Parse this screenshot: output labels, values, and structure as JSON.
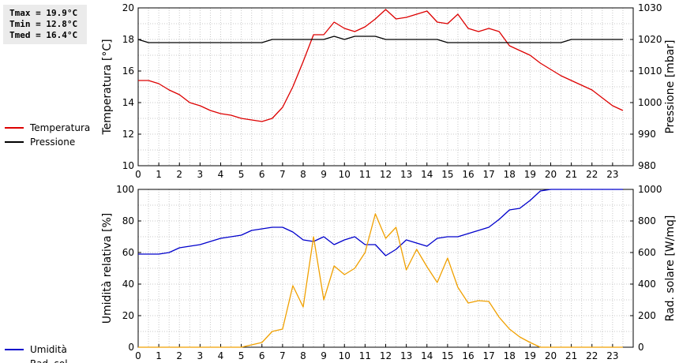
{
  "stats": {
    "tmax": "Tmax = 19.9°C",
    "tmin": "Tmin = 12.8°C",
    "tmed": "Tmed = 16.4°C"
  },
  "chart_data": [
    {
      "type": "line",
      "ylabel_left": "Temperatura [°C]",
      "ylabel_right": "Pressione [mbar]",
      "xlim": [
        0,
        24
      ],
      "ylim_left": [
        10,
        20
      ],
      "ylim_right": [
        980,
        1030
      ],
      "x_ticks": [
        "0",
        "1",
        "2",
        "3",
        "4",
        "5",
        "6",
        "7",
        "8",
        "9",
        "10",
        "11",
        "12",
        "13",
        "14",
        "15",
        "16",
        "17",
        "18",
        "19",
        "20",
        "21",
        "22",
        "23"
      ],
      "y_ticks_left": [
        "10",
        "12",
        "14",
        "16",
        "18",
        "20"
      ],
      "y_ticks_right": [
        "980",
        "990",
        "1000",
        "1010",
        "1020",
        "1030"
      ],
      "grid": true,
      "legend_position": "left",
      "series": [
        {
          "name": "Temperatura",
          "axis": "left",
          "color": "#dd0000",
          "x": [
            0,
            0.5,
            1,
            1.5,
            2,
            2.5,
            3,
            3.5,
            4,
            4.5,
            5,
            5.5,
            6,
            6.5,
            7,
            7.5,
            8,
            8.5,
            9,
            9.5,
            10,
            10.5,
            11,
            11.5,
            12,
            12.5,
            13,
            13.5,
            14,
            14.5,
            15,
            15.5,
            16,
            16.5,
            17,
            17.5,
            18,
            18.5,
            19,
            19.5,
            20,
            20.5,
            21,
            21.5,
            22,
            22.5,
            23,
            23.5
          ],
          "values": [
            15.4,
            15.4,
            15.2,
            14.8,
            14.5,
            14.0,
            13.8,
            13.5,
            13.3,
            13.2,
            13.0,
            12.9,
            12.8,
            13.0,
            13.7,
            15.0,
            16.6,
            18.3,
            18.3,
            19.1,
            18.7,
            18.5,
            18.8,
            19.3,
            19.9,
            19.3,
            19.4,
            19.6,
            19.8,
            19.1,
            19.0,
            19.6,
            18.7,
            18.5,
            18.7,
            18.5,
            17.6,
            17.3,
            17.0,
            16.5,
            16.1,
            15.7,
            15.4,
            15.1,
            14.8,
            14.3,
            13.8,
            13.5
          ]
        },
        {
          "name": "Pressione",
          "axis": "right",
          "color": "#000000",
          "x": [
            0,
            0.5,
            1,
            1.5,
            2,
            2.5,
            3,
            3.5,
            4,
            4.5,
            5,
            5.5,
            6,
            6.5,
            7,
            7.5,
            8,
            8.5,
            9,
            9.5,
            10,
            10.5,
            11,
            11.5,
            12,
            12.5,
            13,
            13.5,
            14,
            14.5,
            15,
            15.5,
            16,
            16.5,
            17,
            17.5,
            18,
            18.5,
            19,
            19.5,
            20,
            20.5,
            21,
            21.5,
            22,
            22.5,
            23,
            23.5
          ],
          "values": [
            1020,
            1019,
            1019,
            1019,
            1019,
            1019,
            1019,
            1019,
            1019,
            1019,
            1019,
            1019,
            1019,
            1020,
            1020,
            1020,
            1020,
            1020,
            1020,
            1021,
            1020,
            1021,
            1021,
            1021,
            1020,
            1020,
            1020,
            1020,
            1020,
            1020,
            1019,
            1019,
            1019,
            1019,
            1019,
            1019,
            1019,
            1019,
            1019,
            1019,
            1019,
            1019,
            1020,
            1020,
            1020,
            1020,
            1020,
            1020
          ]
        }
      ]
    },
    {
      "type": "line",
      "ylabel_left": "Umidità relativa [%]",
      "ylabel_right": "Rad. solare [W/mq]",
      "xlim": [
        0,
        24
      ],
      "ylim_left": [
        0,
        100
      ],
      "ylim_right": [
        0,
        1000
      ],
      "x_ticks": [
        "0",
        "1",
        "2",
        "3",
        "4",
        "5",
        "6",
        "7",
        "8",
        "9",
        "10",
        "11",
        "12",
        "13",
        "14",
        "15",
        "16",
        "17",
        "18",
        "19",
        "20",
        "21",
        "22",
        "23"
      ],
      "y_ticks_left": [
        "0",
        "20",
        "40",
        "60",
        "80",
        "100"
      ],
      "y_ticks_right": [
        "0",
        "200",
        "400",
        "600",
        "800",
        "1000"
      ],
      "grid": true,
      "legend_position": "left",
      "series": [
        {
          "name": "Umidità",
          "axis": "left",
          "color": "#0000cc",
          "x": [
            0,
            0.5,
            1,
            1.5,
            2,
            2.5,
            3,
            3.5,
            4,
            4.5,
            5,
            5.5,
            6,
            6.5,
            7,
            7.5,
            8,
            8.5,
            9,
            9.5,
            10,
            10.5,
            11,
            11.5,
            12,
            12.5,
            13,
            13.5,
            14,
            14.5,
            15,
            15.5,
            16,
            16.5,
            17,
            17.5,
            18,
            18.5,
            19,
            19.5,
            20,
            20.5,
            21,
            21.5,
            22,
            22.5,
            23,
            23.5
          ],
          "values": [
            59,
            59,
            59,
            60,
            63,
            64,
            65,
            67,
            69,
            70,
            71,
            74,
            75,
            76,
            76,
            73,
            68,
            67,
            70,
            65,
            68,
            70,
            65,
            65,
            58,
            62,
            68,
            66,
            64,
            69,
            70,
            70,
            72,
            74,
            76,
            81,
            87,
            88,
            93,
            99,
            100,
            100,
            100,
            100,
            100,
            100,
            100,
            100
          ]
        },
        {
          "name": "Rad. sol.",
          "axis": "right",
          "color": "#f0a000",
          "x": [
            0,
            0.5,
            1,
            1.5,
            2,
            2.5,
            3,
            3.5,
            4,
            4.5,
            5,
            5.5,
            6,
            6.5,
            7,
            7.5,
            8,
            8.5,
            9,
            9.5,
            10,
            10.5,
            11,
            11.5,
            12,
            12.5,
            13,
            13.5,
            14,
            14.5,
            15,
            15.5,
            16,
            16.5,
            17,
            17.5,
            18,
            18.5,
            19,
            19.5,
            20,
            20.5,
            21,
            21.5,
            22,
            22.5,
            23,
            23.5
          ],
          "values": [
            0,
            0,
            0,
            0,
            0,
            0,
            0,
            0,
            0,
            0,
            0,
            15,
            30,
            100,
            115,
            390,
            255,
            700,
            300,
            515,
            460,
            500,
            600,
            845,
            690,
            760,
            490,
            620,
            510,
            410,
            565,
            380,
            280,
            295,
            290,
            190,
            115,
            65,
            30,
            0,
            0,
            0,
            0,
            0,
            0,
            0,
            0,
            0
          ]
        }
      ]
    }
  ]
}
